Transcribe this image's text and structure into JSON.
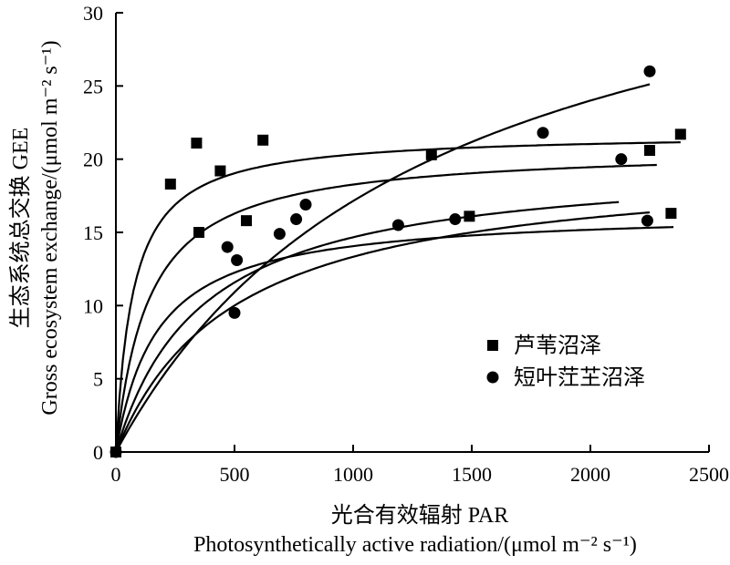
{
  "chart_data": {
    "type": "scatter",
    "title": "",
    "xlabel_cn": "光合有效辐射 PAR",
    "xlabel_en": "Photosynthetically active radiation/(μmol m⁻² s⁻¹)",
    "ylabel_cn": "生态系统总交换 GEE",
    "ylabel_en": "Gross ecosystem exchange/(μmol m⁻² s⁻¹)",
    "xlim": [
      0,
      2500
    ],
    "ylim": [
      0,
      30
    ],
    "x_ticks": [
      0,
      500,
      1000,
      1500,
      2000,
      2500
    ],
    "y_ticks": [
      0,
      5,
      10,
      15,
      20,
      25,
      30
    ],
    "grid": false,
    "legend_position": "lower-right",
    "series": [
      {
        "name": "芦苇沼泽",
        "marker": "square",
        "points": [
          [
            0,
            0
          ],
          [
            340,
            21.1
          ],
          [
            620,
            21.3
          ],
          [
            230,
            18.3
          ],
          [
            440,
            19.2
          ],
          [
            1330,
            20.3
          ],
          [
            2250,
            20.6
          ],
          [
            2380,
            21.7
          ],
          [
            350,
            15.0
          ],
          [
            550,
            15.8
          ],
          [
            1490,
            16.1
          ],
          [
            2340,
            16.3
          ]
        ]
      },
      {
        "name": "短叶茳芏沼泽",
        "marker": "circle",
        "points": [
          [
            0,
            0
          ],
          [
            470,
            14.0
          ],
          [
            510,
            13.1
          ],
          [
            500,
            9.5
          ],
          [
            690,
            14.9
          ],
          [
            760,
            15.9
          ],
          [
            800,
            16.9
          ],
          [
            1190,
            15.5
          ],
          [
            1430,
            15.9
          ],
          [
            1800,
            21.8
          ],
          [
            2130,
            20.0
          ],
          [
            2240,
            15.8
          ],
          [
            2250,
            26.0
          ]
        ]
      }
    ],
    "fitted_curves": [
      {
        "label": "curve-1",
        "params": {
          "a": 0.3,
          "pmax": 21.8
        },
        "x_range": [
          0,
          2380
        ]
      },
      {
        "label": "curve-2",
        "params": {
          "a": 0.15,
          "pmax": 20.8
        },
        "x_range": [
          0,
          2280
        ]
      },
      {
        "label": "curve-3",
        "params": {
          "a": 0.095,
          "pmax": 16.5
        },
        "x_range": [
          0,
          2350
        ]
      },
      {
        "label": "curve-4",
        "params": {
          "a": 0.055,
          "pmax": 20.0
        },
        "x_range": [
          0,
          2120
        ]
      },
      {
        "label": "curve-5",
        "params": {
          "a": 0.04,
          "pmax": 20.0
        },
        "x_range": [
          0,
          2250
        ]
      },
      {
        "label": "curve-6",
        "params": {
          "a": 0.03,
          "pmax": 40.0
        },
        "x_range": [
          0,
          2250
        ]
      }
    ]
  }
}
